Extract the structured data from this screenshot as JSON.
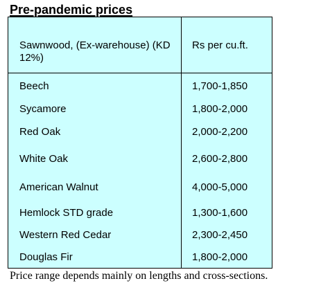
{
  "title": "Pre-pandemic prices",
  "table": {
    "header": {
      "col1": "Sawnwood, (Ex-warehouse) (KD 12%)",
      "col2": "Rs per cu.ft."
    },
    "rows": [
      {
        "wood": "Beech",
        "price": "1,700-1,850"
      },
      {
        "wood": "Sycamore",
        "price": "1,800-2,000"
      },
      {
        "wood": "Red Oak",
        "price": "2,000-2,200"
      },
      {
        "wood": "White Oak",
        "price": "2,600-2,800"
      },
      {
        "wood": "American Walnut",
        "price": "4,000-5,000"
      },
      {
        "wood": "Hemlock STD grade",
        "price": "1,300-1,600"
      },
      {
        "wood": "Western Red Cedar",
        "price": "2,300-2,450"
      },
      {
        "wood": "Douglas Fir",
        "price": "1,800-2,000"
      }
    ],
    "background_color": "#ccffff",
    "border_color": "#000000"
  },
  "footnote": "Price range depends mainly on lengths and cross-sections."
}
